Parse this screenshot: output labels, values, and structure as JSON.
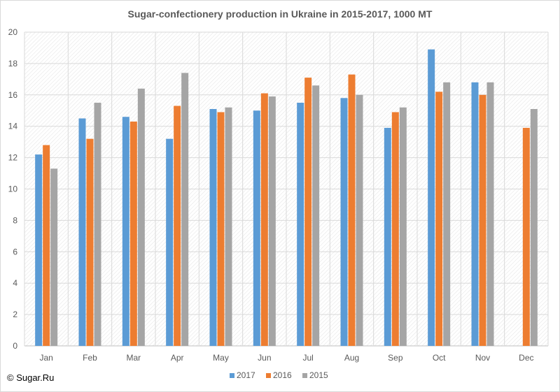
{
  "chart_data": {
    "type": "bar",
    "title": "Sugar-confectionery production in Ukraine in 2015-2017, 1000 MT",
    "xlabel": "",
    "ylabel": "",
    "categories": [
      "Jan",
      "Feb",
      "Mar",
      "Apr",
      "May",
      "Jun",
      "Jul",
      "Aug",
      "Sep",
      "Oct",
      "Nov",
      "Dec"
    ],
    "series": [
      {
        "name": "2017",
        "color": "#5b9bd5",
        "values": [
          12.2,
          14.5,
          14.6,
          13.2,
          15.1,
          15.0,
          15.5,
          15.8,
          13.9,
          18.9,
          16.8,
          null
        ]
      },
      {
        "name": "2016",
        "color": "#ed7d31",
        "values": [
          12.8,
          13.2,
          14.3,
          15.3,
          14.9,
          16.1,
          17.1,
          17.3,
          14.9,
          16.2,
          16.0,
          13.9
        ]
      },
      {
        "name": "2015",
        "color": "#a5a5a5",
        "values": [
          11.3,
          15.5,
          16.4,
          17.4,
          15.2,
          15.9,
          16.6,
          16.0,
          15.2,
          16.8,
          16.8,
          15.1
        ]
      }
    ],
    "ylim": [
      0,
      20
    ],
    "yticks": [
      0,
      2,
      4,
      6,
      8,
      10,
      12,
      14,
      16,
      18,
      20
    ],
    "grid": true,
    "legend": "bottom"
  },
  "footer": {
    "copyright": "© Sugar.Ru"
  }
}
